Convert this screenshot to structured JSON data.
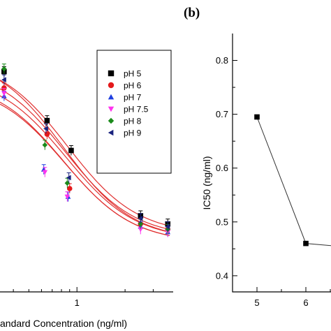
{
  "panel_b_label": "(b)",
  "chart_data": [
    {
      "type": "scatter",
      "xscale": "log",
      "xlabel": "andard Concentration (ng/ml)",
      "xticks": [
        "1"
      ],
      "xlim": [
        0.33,
        4.0
      ],
      "ylim": [
        0.2,
        1.15
      ],
      "legend_position": "top-right",
      "series": [
        {
          "name": "pH 5",
          "marker": "square",
          "color": "#000000",
          "x": [
            0.35,
            0.65,
            0.92,
            2.5,
            3.7
          ],
          "y": [
            1.01,
            0.83,
            0.72,
            0.48,
            0.45
          ]
        },
        {
          "name": "pH 6",
          "marker": "circle",
          "color": "#e41a1c",
          "x": [
            0.35,
            0.65,
            0.9,
            2.5,
            3.7
          ],
          "y": [
            0.95,
            0.78,
            0.58,
            0.45,
            0.43
          ]
        },
        {
          "name": "pH 7",
          "marker": "triangle-up",
          "color": "#1f3fe0",
          "x": [
            0.35,
            0.62,
            0.88,
            2.5,
            3.7
          ],
          "y": [
            0.92,
            0.65,
            0.55,
            0.44,
            0.42
          ]
        },
        {
          "name": "pH 7.5",
          "marker": "triangle-down",
          "color": "#ff33ee",
          "x": [
            0.35,
            0.63,
            0.87,
            2.5,
            3.7
          ],
          "y": [
            0.93,
            0.64,
            0.55,
            0.43,
            0.42
          ]
        },
        {
          "name": "pH 8",
          "marker": "diamond",
          "color": "#1a8a1a",
          "x": [
            0.35,
            0.63,
            0.87,
            2.5,
            3.7
          ],
          "y": [
            1.02,
            0.74,
            0.6,
            0.45,
            0.43
          ]
        },
        {
          "name": "pH 9",
          "marker": "triangle-left",
          "color": "#1a237e",
          "x": [
            0.35,
            0.64,
            0.89,
            2.5,
            3.7
          ],
          "y": [
            0.98,
            0.8,
            0.62,
            0.47,
            0.44
          ]
        }
      ]
    },
    {
      "type": "line",
      "xlabel": "",
      "ylabel": "IC50 (ng/ml)",
      "xticks": [
        "5",
        "6"
      ],
      "yticks": [
        "0.4",
        "0.5",
        "0.6",
        "0.7",
        "0.8"
      ],
      "xlim": [
        4.5,
        7
      ],
      "ylim": [
        0.37,
        0.85
      ],
      "series": [
        {
          "name": "",
          "marker": "square",
          "color": "#000000",
          "x": [
            5,
            6,
            7
          ],
          "y": [
            0.695,
            0.46,
            0.452
          ]
        }
      ]
    }
  ]
}
